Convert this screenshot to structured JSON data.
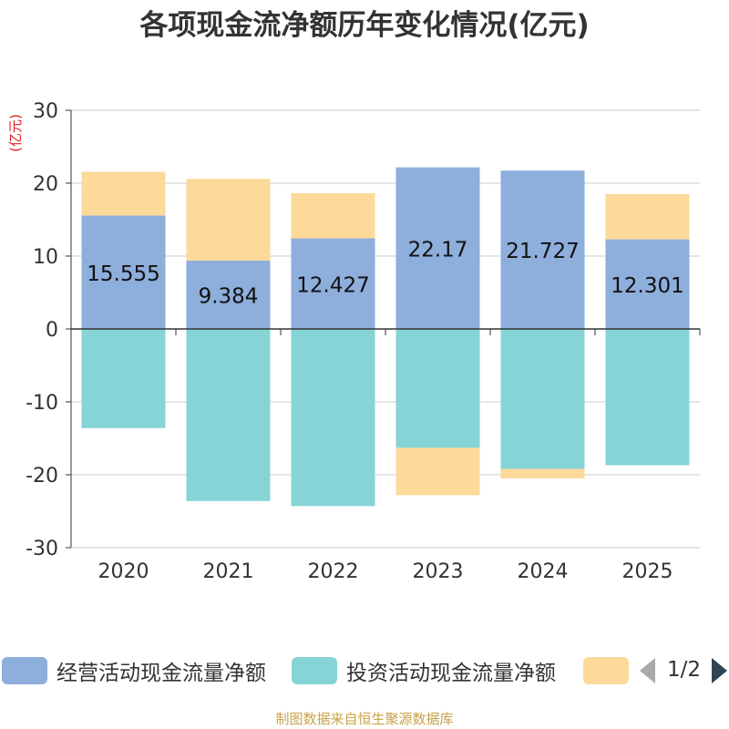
{
  "title": "各项现金流净额历年变化情况(亿元)",
  "unit_label": "(亿元)",
  "legend": {
    "items": [
      {
        "label": "经营活动现金流量净额",
        "color": "#8eaedb"
      },
      {
        "label": "投资活动现金流量净额",
        "color": "#86d4d6"
      },
      {
        "label": "",
        "color": "#fdd99a"
      }
    ],
    "page_indicator": "1/2"
  },
  "source": "制图数据来自恒生聚源数据库",
  "colors": {
    "operating": "#8eaedb",
    "investing": "#86d4d6",
    "other": "#fdd99a",
    "axis": "#333333",
    "grid": "#cccccc",
    "unit": "#e02020"
  },
  "chart_data": {
    "type": "bar",
    "stacked": true,
    "categories": [
      "2020",
      "2021",
      "2022",
      "2023",
      "2024",
      "2025"
    ],
    "ylim": [
      -30,
      30
    ],
    "yticks": [
      30,
      20,
      10,
      0,
      -10,
      -20,
      -30
    ],
    "ylabel": "(亿元)",
    "series": [
      {
        "name": "经营活动现金流量净额",
        "key": "operating",
        "values": [
          15.555,
          9.384,
          12.427,
          22.17,
          21.727,
          12.301
        ],
        "labels": [
          "15.555",
          "9.384",
          "12.427",
          "22.17",
          "21.727",
          "12.301"
        ]
      },
      {
        "name": "投资活动现金流量净额",
        "key": "investing",
        "values": [
          -13.6,
          -23.6,
          -24.3,
          -16.3,
          -19.2,
          -18.7
        ]
      },
      {
        "name": "",
        "key": "other",
        "values": [
          6.0,
          11.2,
          6.2,
          -6.5,
          -1.3,
          6.2
        ]
      }
    ]
  }
}
